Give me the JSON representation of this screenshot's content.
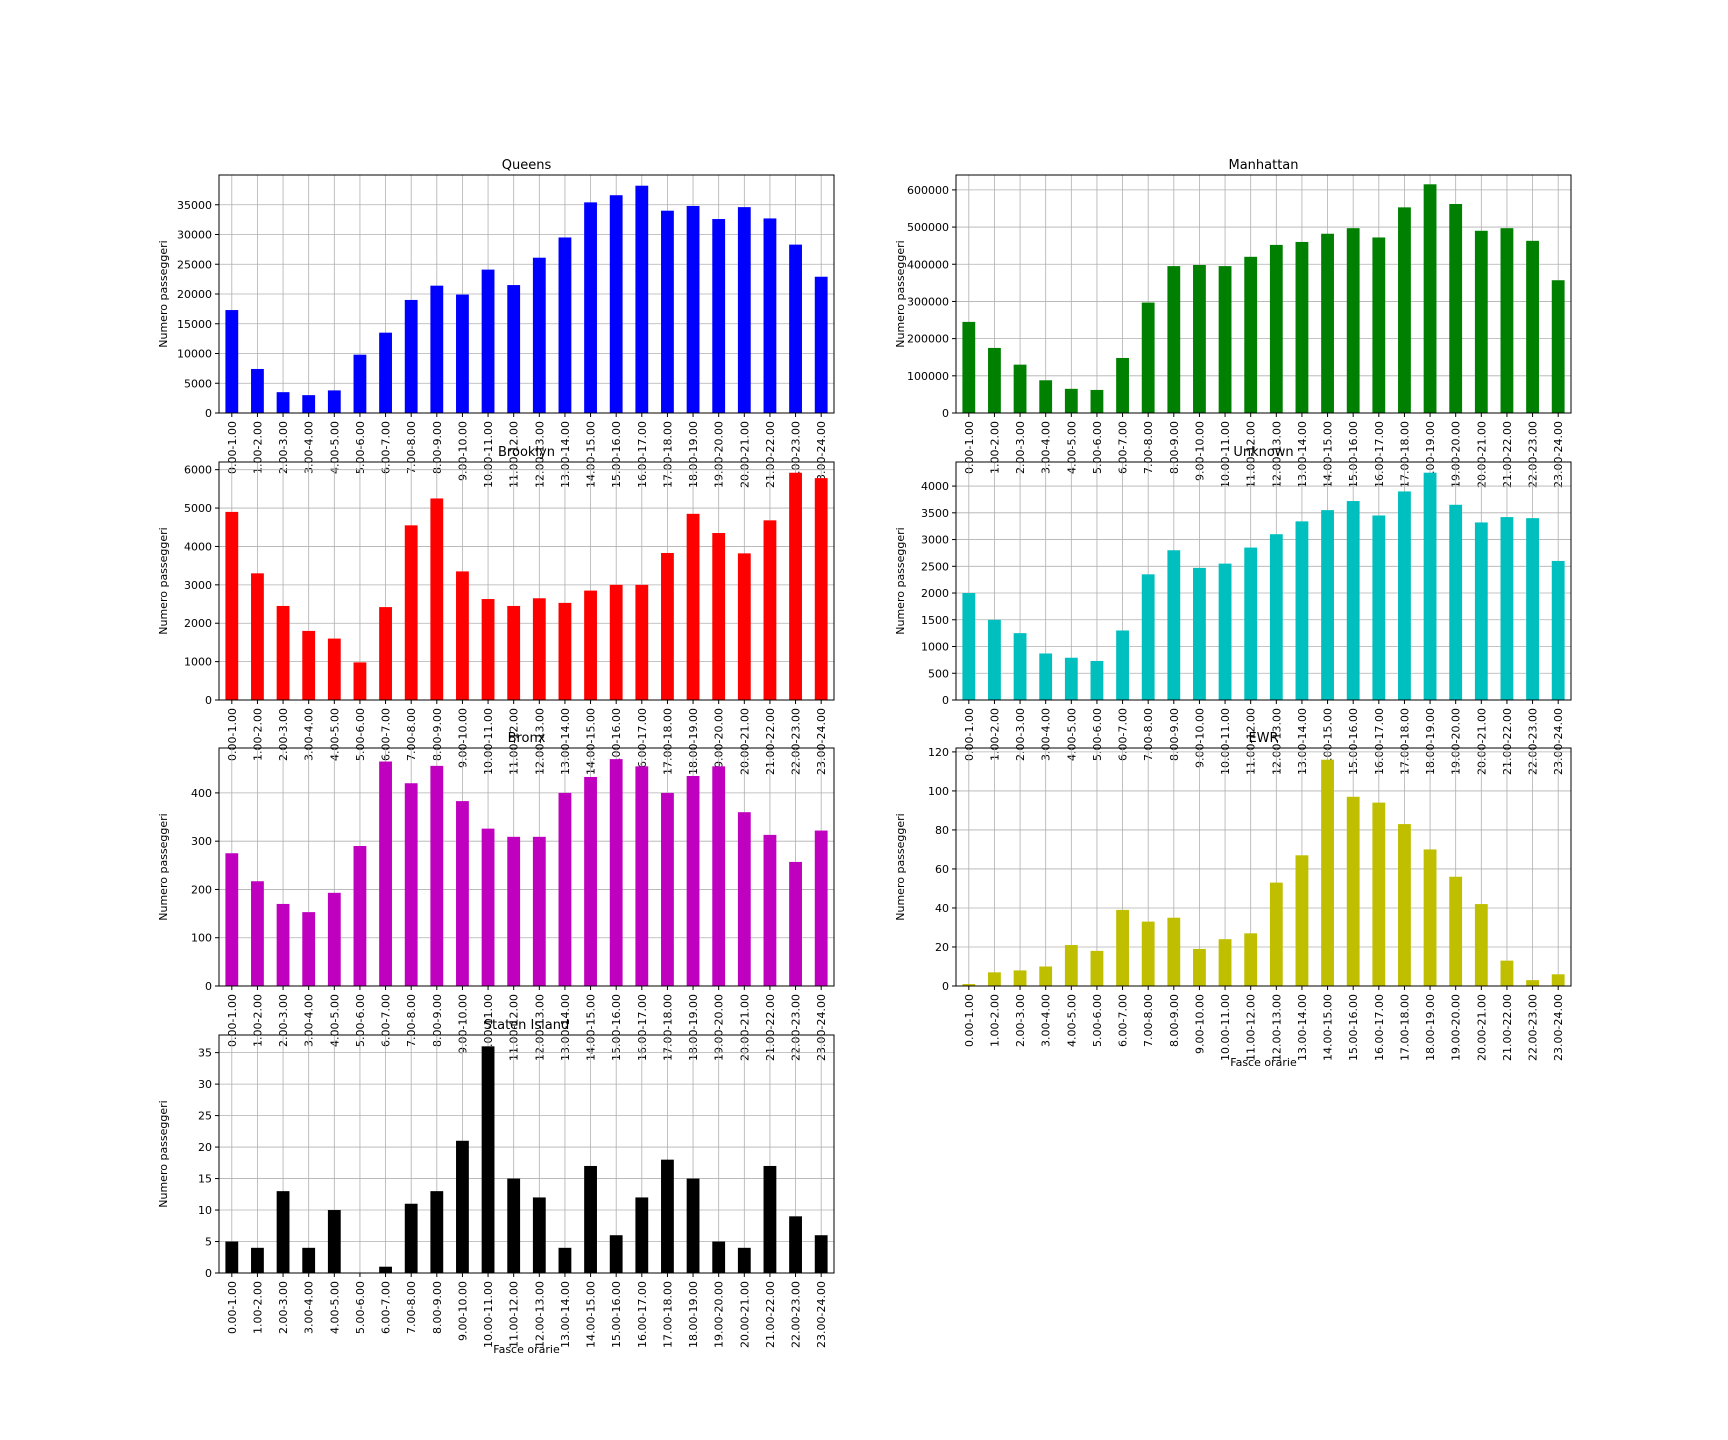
{
  "chart_data": [
    {
      "type": "bar",
      "title": "Queens",
      "xlabel": "",
      "ylabel": "Numero passeggeri",
      "color": "#0000ff",
      "ylim": [
        0,
        40000
      ],
      "yticks": [
        0,
        5000,
        10000,
        15000,
        20000,
        25000,
        30000,
        35000
      ],
      "grid": true,
      "categories": [
        "0.00-1.00",
        "1.00-2.00",
        "2.00-3.00",
        "3.00-4.00",
        "4.00-5.00",
        "5.00-6.00",
        "6.00-7.00",
        "7.00-8.00",
        "8.00-9.00",
        "9.00-10.00",
        "10.00-11.00",
        "11.00-12.00",
        "12.00-13.00",
        "13.00-14.00",
        "14.00-15.00",
        "15.00-16.00",
        "16.00-17.00",
        "17.00-18.00",
        "18.00-19.00",
        "19.00-20.00",
        "20.00-21.00",
        "21.00-22.00",
        "22.00-23.00",
        "23.00-24.00"
      ],
      "values": [
        17300,
        7400,
        3500,
        3000,
        3800,
        9800,
        13500,
        19000,
        21400,
        19900,
        24100,
        21500,
        26100,
        29500,
        35400,
        36600,
        38200,
        34000,
        34800,
        32600,
        34600,
        32700,
        28300,
        22900
      ]
    },
    {
      "type": "bar",
      "title": "Manhattan",
      "xlabel": "",
      "ylabel": "Numero passeggeri",
      "color": "#008000",
      "ylim": [
        0,
        640000
      ],
      "yticks": [
        0,
        100000,
        200000,
        300000,
        400000,
        500000,
        600000
      ],
      "grid": true,
      "categories": [
        "0.00-1.00",
        "1.00-2.00",
        "2.00-3.00",
        "3.00-4.00",
        "4.00-5.00",
        "5.00-6.00",
        "6.00-7.00",
        "7.00-8.00",
        "8.00-9.00",
        "9.00-10.00",
        "10.00-11.00",
        "11.00-12.00",
        "12.00-13.00",
        "13.00-14.00",
        "14.00-15.00",
        "15.00-16.00",
        "16.00-17.00",
        "17.00-18.00",
        "18.00-19.00",
        "19.00-20.00",
        "20.00-21.00",
        "21.00-22.00",
        "22.00-23.00",
        "23.00-24.00"
      ],
      "values": [
        245000,
        175000,
        130000,
        88000,
        65000,
        62000,
        148000,
        297000,
        395000,
        398000,
        395000,
        420000,
        452000,
        460000,
        482000,
        497000,
        472000,
        553000,
        615000,
        562000,
        490000,
        497000,
        463000,
        357000
      ]
    },
    {
      "type": "bar",
      "title": "Brooklyn",
      "xlabel": "",
      "ylabel": "Numero passeggeri",
      "color": "#ff0000",
      "ylim": [
        0,
        6200
      ],
      "yticks": [
        0,
        1000,
        2000,
        3000,
        4000,
        5000,
        6000
      ],
      "grid": true,
      "categories": [
        "0.00-1.00",
        "1.00-2.00",
        "2.00-3.00",
        "3.00-4.00",
        "4.00-5.00",
        "5.00-6.00",
        "6.00-7.00",
        "7.00-8.00",
        "8.00-9.00",
        "9.00-10.00",
        "10.00-11.00",
        "11.00-12.00",
        "12.00-13.00",
        "13.00-14.00",
        "14.00-15.00",
        "15.00-16.00",
        "16.00-17.00",
        "17.00-18.00",
        "18.00-19.00",
        "19.00-20.00",
        "20.00-21.00",
        "21.00-22.00",
        "22.00-23.00",
        "23.00-24.00"
      ],
      "values": [
        4900,
        3300,
        2450,
        1800,
        1600,
        980,
        2420,
        4550,
        5250,
        3350,
        2630,
        2450,
        2650,
        2530,
        2850,
        3000,
        3000,
        3830,
        4850,
        4350,
        3820,
        4680,
        5920,
        5780
      ]
    },
    {
      "type": "bar",
      "title": "Unknown",
      "xlabel": "",
      "ylabel": "Numero passeggeri",
      "color": "#00bfbf",
      "ylim": [
        0,
        4450
      ],
      "yticks": [
        0,
        500,
        1000,
        1500,
        2000,
        2500,
        3000,
        3500,
        4000
      ],
      "grid": true,
      "categories": [
        "0.00-1.00",
        "1.00-2.00",
        "2.00-3.00",
        "3.00-4.00",
        "4.00-5.00",
        "5.00-6.00",
        "6.00-7.00",
        "7.00-8.00",
        "8.00-9.00",
        "9.00-10.00",
        "10.00-11.00",
        "11.00-12.00",
        "12.00-13.00",
        "13.00-14.00",
        "14.00-15.00",
        "15.00-16.00",
        "16.00-17.00",
        "17.00-18.00",
        "18.00-19.00",
        "19.00-20.00",
        "20.00-21.00",
        "21.00-22.00",
        "22.00-23.00",
        "23.00-24.00"
      ],
      "values": [
        2000,
        1500,
        1250,
        870,
        790,
        730,
        1300,
        2350,
        2800,
        2470,
        2550,
        2850,
        3100,
        3340,
        3550,
        3720,
        3450,
        3900,
        4250,
        3650,
        3320,
        3420,
        3400,
        2600
      ]
    },
    {
      "type": "bar",
      "title": "Bronx",
      "xlabel": "",
      "ylabel": "Numero passeggeri",
      "color": "#bf00bf",
      "ylim": [
        0,
        493
      ],
      "yticks": [
        0,
        100,
        200,
        300,
        400
      ],
      "grid": true,
      "categories": [
        "0.00-1.00",
        "1.00-2.00",
        "2.00-3.00",
        "3.00-4.00",
        "4.00-5.00",
        "5.00-6.00",
        "6.00-7.00",
        "7.00-8.00",
        "8.00-9.00",
        "9.00-10.00",
        "10.00-11.00",
        "11.00-12.00",
        "12.00-13.00",
        "13.00-14.00",
        "14.00-15.00",
        "15.00-16.00",
        "16.00-17.00",
        "17.00-18.00",
        "18.00-19.00",
        "19.00-20.00",
        "20.00-21.00",
        "21.00-22.00",
        "22.00-23.00",
        "23.00-24.00"
      ],
      "values": [
        275,
        217,
        170,
        153,
        193,
        290,
        465,
        420,
        456,
        383,
        326,
        309,
        309,
        400,
        433,
        470,
        455,
        400,
        435,
        455,
        360,
        313,
        257,
        322
      ]
    },
    {
      "type": "bar",
      "title": "EWR",
      "xlabel": "Fasce orarie",
      "ylabel": "Numero passeggeri",
      "color": "#bfbf00",
      "ylim": [
        0,
        122
      ],
      "yticks": [
        0,
        20,
        40,
        60,
        80,
        100,
        120
      ],
      "grid": true,
      "categories": [
        "0.00-1.00",
        "1.00-2.00",
        "2.00-3.00",
        "3.00-4.00",
        "4.00-5.00",
        "5.00-6.00",
        "6.00-7.00",
        "7.00-8.00",
        "8.00-9.00",
        "9.00-10.00",
        "10.00-11.00",
        "11.00-12.00",
        "12.00-13.00",
        "13.00-14.00",
        "14.00-15.00",
        "15.00-16.00",
        "16.00-17.00",
        "17.00-18.00",
        "18.00-19.00",
        "19.00-20.00",
        "20.00-21.00",
        "21.00-22.00",
        "22.00-23.00",
        "23.00-24.00"
      ],
      "values": [
        1,
        7,
        8,
        10,
        21,
        18,
        39,
        33,
        35,
        19,
        24,
        27,
        53,
        67,
        116,
        97,
        94,
        83,
        70,
        56,
        42,
        13,
        3,
        6
      ]
    },
    {
      "type": "bar",
      "title": "Staten Island",
      "xlabel": "Fasce orarie",
      "ylabel": "Numero passeggeri",
      "color": "#000000",
      "ylim": [
        0,
        37.8
      ],
      "yticks": [
        0,
        5,
        10,
        15,
        20,
        25,
        30,
        35
      ],
      "grid": true,
      "categories": [
        "0.00-1.00",
        "1.00-2.00",
        "2.00-3.00",
        "3.00-4.00",
        "4.00-5.00",
        "5.00-6.00",
        "6.00-7.00",
        "7.00-8.00",
        "8.00-9.00",
        "9.00-10.00",
        "10.00-11.00",
        "11.00-12.00",
        "12.00-13.00",
        "13.00-14.00",
        "14.00-15.00",
        "15.00-16.00",
        "16.00-17.00",
        "17.00-18.00",
        "18.00-19.00",
        "19.00-20.00",
        "20.00-21.00",
        "21.00-22.00",
        "22.00-23.00",
        "23.00-24.00"
      ],
      "values": [
        5,
        4,
        13,
        4,
        10,
        0,
        1,
        11,
        13,
        21,
        36,
        15,
        12,
        4,
        17,
        6,
        12,
        18,
        15,
        5,
        4,
        17,
        9,
        6
      ]
    }
  ]
}
